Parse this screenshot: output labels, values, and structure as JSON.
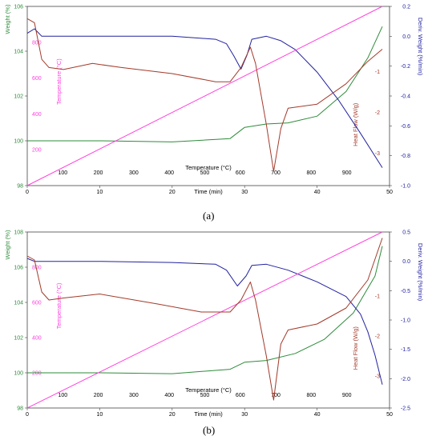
{
  "chart_data": [
    {
      "type": "line",
      "panel_label": "(a)",
      "axes": {
        "weight": {
          "label": "Weight (%)",
          "ticks": [
            "98",
            "100",
            "102",
            "104",
            "106"
          ],
          "range": [
            98,
            106
          ]
        },
        "time": {
          "label": "Time (min)",
          "ticks": [
            "0",
            "10",
            "20",
            "30",
            "40",
            "50"
          ],
          "range": [
            0,
            50
          ]
        },
        "deriv": {
          "label": "Deriv. Weight (%/min)",
          "ticks": [
            "0.2",
            "0.0",
            "-0.2",
            "-0.4",
            "-0.6",
            "-0.8",
            "-1.0"
          ],
          "range": [
            -1.0,
            0.2
          ]
        },
        "temperature": {
          "label": "Temperature (°C)",
          "ticks": [
            "100",
            "200",
            "300",
            "400",
            "500",
            "600",
            "700",
            "800",
            "900"
          ],
          "range": [
            0,
            1000
          ]
        },
        "temperature_left": {
          "label": "Temperature (°C)",
          "ticks": [
            "200",
            "400",
            "600",
            "800"
          ],
          "range": [
            0,
            1000
          ]
        },
        "heatflow": {
          "label": "Heat Flow (W/g)",
          "ticks": [
            "-1",
            "-2",
            "-3"
          ],
          "range": [
            -3.8,
            0.6
          ]
        }
      },
      "series": [
        {
          "color": "#2e8b3a",
          "axis": "weight",
          "points": [
            [
              0,
              100
            ],
            [
              10,
              100
            ],
            [
              20,
              99.95
            ],
            [
              28,
              100.1
            ],
            [
              30,
              100.6
            ],
            [
              33,
              100.75
            ],
            [
              36,
              100.8
            ],
            [
              40,
              101.1
            ],
            [
              44,
              102.2
            ],
            [
              47,
              103.7
            ],
            [
              49,
              105.1
            ]
          ]
        },
        {
          "color": "#2222a0",
          "axis": "deriv",
          "points": [
            [
              0,
              0.02
            ],
            [
              1,
              0.05
            ],
            [
              2,
              0
            ],
            [
              10,
              0
            ],
            [
              20,
              0
            ],
            [
              26,
              -0.02
            ],
            [
              27.5,
              -0.05
            ],
            [
              28.5,
              -0.13
            ],
            [
              29.5,
              -0.22
            ],
            [
              30.3,
              -0.13
            ],
            [
              31,
              -0.02
            ],
            [
              33,
              0
            ],
            [
              35,
              -0.03
            ],
            [
              37,
              -0.09
            ],
            [
              40,
              -0.24
            ],
            [
              43,
              -0.43
            ],
            [
              46,
              -0.65
            ],
            [
              49,
              -0.88
            ]
          ]
        },
        {
          "color": "#ff44dd",
          "axis": "time_temperature",
          "points": [
            [
              0,
              0
            ],
            [
              49,
              1000
            ]
          ]
        },
        {
          "color": "#a33a2a",
          "axis": "heatflow",
          "points": [
            [
              0,
              0.3
            ],
            [
              1,
              0.2
            ],
            [
              2,
              -0.7
            ],
            [
              3,
              -0.9
            ],
            [
              5,
              -0.95
            ],
            [
              9,
              -0.8
            ],
            [
              13,
              -0.9
            ],
            [
              20,
              -1.05
            ],
            [
              26,
              -1.25
            ],
            [
              28,
              -1.25
            ],
            [
              29.5,
              -0.9
            ],
            [
              30.8,
              -0.4
            ],
            [
              31.5,
              -0.8
            ],
            [
              33,
              -2.3
            ],
            [
              34,
              -3.45
            ],
            [
              35,
              -2.4
            ],
            [
              36,
              -1.9
            ],
            [
              40,
              -1.8
            ],
            [
              44,
              -1.3
            ],
            [
              47,
              -0.75
            ],
            [
              49,
              -0.45
            ]
          ]
        }
      ]
    },
    {
      "type": "line",
      "panel_label": "(b)",
      "axes": {
        "weight": {
          "label": "Weight (%)",
          "ticks": [
            "98",
            "100",
            "102",
            "104",
            "106",
            "108"
          ],
          "range": [
            98,
            108
          ]
        },
        "time": {
          "label": "Time (min)",
          "ticks": [
            "0",
            "10",
            "20",
            "30",
            "40",
            "50"
          ],
          "range": [
            0,
            50
          ]
        },
        "deriv": {
          "label": "Deriv. Weight (%/min)",
          "ticks": [
            "0.5",
            "0.0",
            "-0.5",
            "-1.0",
            "-1.5",
            "-2.0",
            "-2.5"
          ],
          "range": [
            -2.5,
            0.5
          ]
        },
        "temperature": {
          "label": "Temperature (°C)",
          "ticks": [
            "100",
            "200",
            "300",
            "400",
            "500",
            "600",
            "700",
            "800",
            "900"
          ],
          "range": [
            0,
            1000
          ]
        },
        "temperature_left": {
          "label": "Temperature (°C)",
          "ticks": [
            "200",
            "400",
            "600",
            "800"
          ],
          "range": [
            0,
            1000
          ]
        },
        "heatflow": {
          "label": "Heat Flow (W/g)",
          "ticks": [
            "-1",
            "-2",
            "-3"
          ],
          "range": [
            -3.8,
            0.6
          ]
        }
      },
      "series": [
        {
          "color": "#2e8b3a",
          "axis": "weight",
          "points": [
            [
              0,
              100
            ],
            [
              10,
              100
            ],
            [
              20,
              99.95
            ],
            [
              28,
              100.2
            ],
            [
              30,
              100.6
            ],
            [
              33,
              100.7
            ],
            [
              37,
              101.1
            ],
            [
              41,
              101.9
            ],
            [
              45,
              103.4
            ],
            [
              48,
              105.5
            ],
            [
              49,
              107.2
            ]
          ]
        },
        {
          "color": "#2222a0",
          "axis": "deriv",
          "points": [
            [
              0,
              0.05
            ],
            [
              1,
              0
            ],
            [
              10,
              0
            ],
            [
              20,
              -0.02
            ],
            [
              26,
              -0.05
            ],
            [
              27.5,
              -0.15
            ],
            [
              29,
              -0.42
            ],
            [
              30.2,
              -0.25
            ],
            [
              31,
              -0.07
            ],
            [
              33,
              -0.05
            ],
            [
              36,
              -0.15
            ],
            [
              40,
              -0.35
            ],
            [
              44,
              -0.6
            ],
            [
              46,
              -0.9
            ],
            [
              47,
              -1.2
            ],
            [
              48,
              -1.6
            ],
            [
              49,
              -2.1
            ]
          ]
        },
        {
          "color": "#ff44dd",
          "axis": "time_temperature",
          "points": [
            [
              0,
              0
            ],
            [
              49,
              1000
            ]
          ]
        },
        {
          "color": "#a33a2a",
          "axis": "heatflow",
          "points": [
            [
              0,
              0
            ],
            [
              1,
              -0.1
            ],
            [
              2,
              -0.9
            ],
            [
              3,
              -1.1
            ],
            [
              5,
              -1.05
            ],
            [
              10,
              -0.95
            ],
            [
              18,
              -1.2
            ],
            [
              24,
              -1.4
            ],
            [
              28,
              -1.4
            ],
            [
              29.5,
              -1.1
            ],
            [
              30.8,
              -0.65
            ],
            [
              31.5,
              -1.1
            ],
            [
              33,
              -2.5
            ],
            [
              34,
              -3.6
            ],
            [
              35,
              -2.2
            ],
            [
              36,
              -1.85
            ],
            [
              40,
              -1.7
            ],
            [
              44,
              -1.3
            ],
            [
              47,
              -0.6
            ],
            [
              49,
              0.45
            ]
          ]
        }
      ]
    }
  ]
}
